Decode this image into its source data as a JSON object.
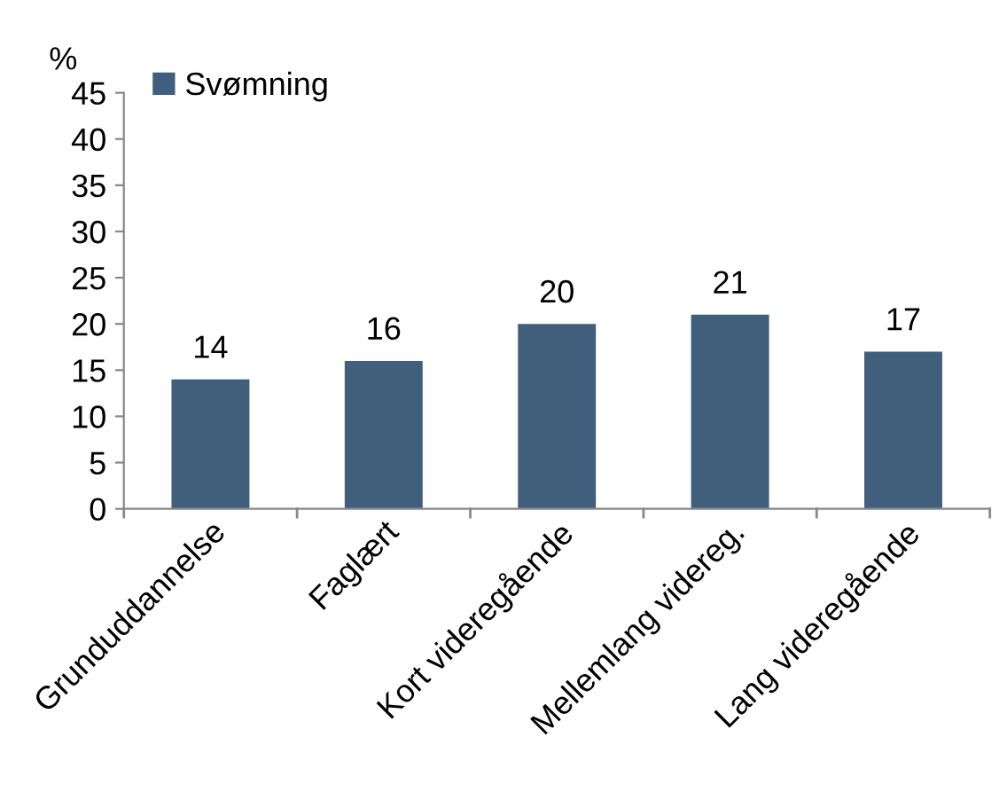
{
  "chart_data": {
    "type": "bar",
    "ylabel": "%",
    "categories": [
      "Grunduddannelse",
      "Faglært",
      "Kort videregående",
      "Mellemlang videreg.",
      "Lang videregående"
    ],
    "series": [
      {
        "name": "Svømning",
        "color": "#3f5f7d",
        "values": [
          14,
          16,
          20,
          21,
          17
        ]
      }
    ],
    "ylim": [
      0,
      45
    ],
    "yticks": [
      0,
      5,
      10,
      15,
      20,
      25,
      30,
      35,
      40,
      45
    ],
    "data_labels": true,
    "legend": "top",
    "grid": false
  }
}
